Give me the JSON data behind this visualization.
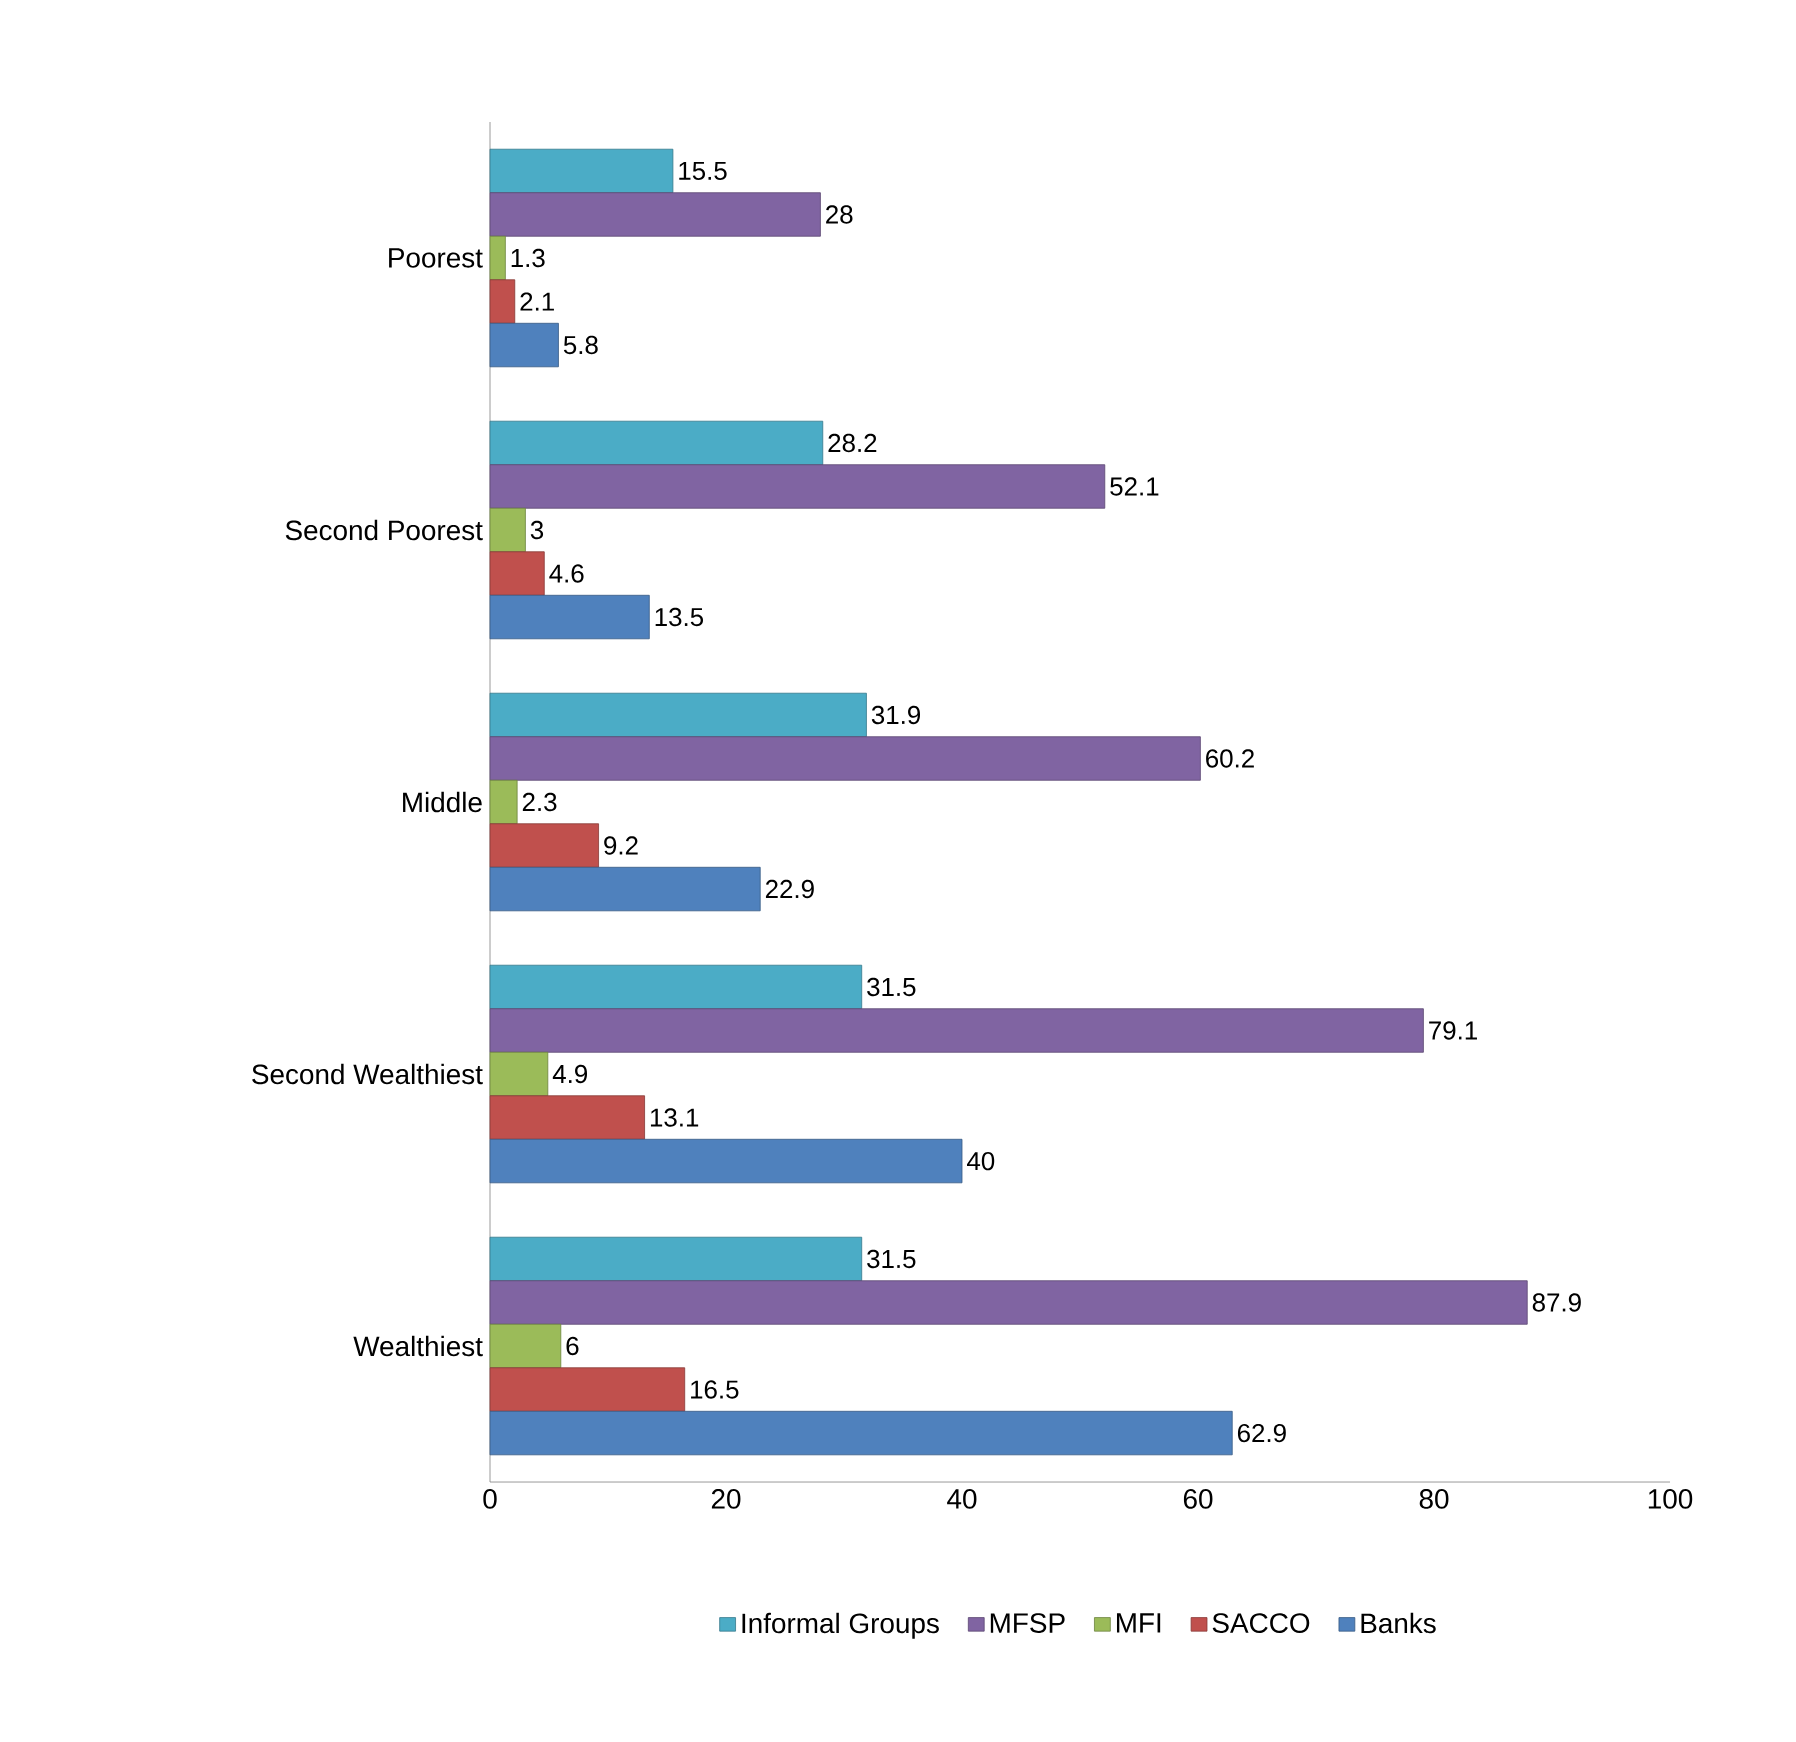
{
  "chart_data": {
    "type": "bar",
    "orientation": "horizontal",
    "categories": [
      "Poorest",
      "Second Poorest",
      "Middle",
      "Second Wealthiest",
      "Wealthiest"
    ],
    "series": [
      {
        "name": "Informal Groups",
        "color": "#4bacc6",
        "values": [
          15.5,
          28.2,
          31.9,
          31.5,
          31.5
        ]
      },
      {
        "name": "MFSP",
        "color": "#8064a2",
        "values": [
          28,
          52.1,
          60.2,
          79.1,
          87.9
        ]
      },
      {
        "name": "MFI",
        "color": "#9bbb59",
        "values": [
          1.3,
          3,
          2.3,
          4.9,
          6
        ]
      },
      {
        "name": "SACCO",
        "color": "#c0504d",
        "values": [
          2.1,
          4.6,
          9.2,
          13.1,
          16.5
        ]
      },
      {
        "name": "Banks",
        "color": "#4f81bd",
        "values": [
          5.8,
          13.5,
          22.9,
          40,
          62.9
        ]
      }
    ],
    "xlim": [
      0,
      100
    ],
    "xticks": [
      0,
      20,
      40,
      60,
      80,
      100
    ],
    "data_labels": true,
    "legend": "bottom"
  }
}
